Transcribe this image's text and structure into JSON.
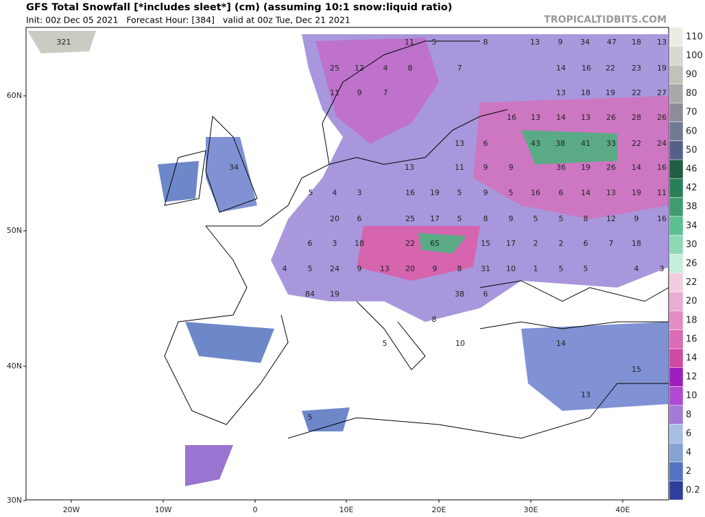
{
  "header": {
    "title": "GFS Total Snowfall [*includes sleet*] (cm) (assuming 10:1 snow:liquid ratio)",
    "subtitle": "Init: 00z Dec 05 2021   Forecast Hour: [384]   valid at 00z Tue, Dec 21 2021",
    "watermark": "TROPICALTIDBITS.COM"
  },
  "map": {
    "lat_labels": [
      "60N",
      "50N",
      "40N",
      "30N"
    ],
    "lon_labels": [
      "20W",
      "10W",
      "0",
      "10E",
      "20E",
      "30E",
      "40E"
    ],
    "labels": [
      321,
      11,
      5,
      8,
      13,
      9,
      34,
      47,
      18,
      13,
      25,
      12,
      4,
      8,
      7,
      14,
      16,
      22,
      23,
      19,
      11,
      9,
      7,
      13,
      18,
      19,
      22,
      27,
      16,
      13,
      14,
      13,
      26,
      28,
      26,
      13,
      6,
      43,
      38,
      41,
      33,
      22,
      24,
      34,
      13,
      11,
      9,
      9,
      36,
      19,
      26,
      14,
      16,
      5,
      4,
      3,
      16,
      19,
      5,
      9,
      5,
      16,
      6,
      14,
      13,
      19,
      11,
      20,
      6,
      25,
      17,
      5,
      8,
      9,
      5,
      5,
      8,
      12,
      9,
      16,
      6,
      3,
      18,
      22,
      65,
      15,
      17,
      2,
      2,
      6,
      7,
      18,
      4,
      5,
      24,
      9,
      13,
      20,
      9,
      8,
      31,
      10,
      1,
      5,
      5,
      4,
      3,
      84,
      19,
      38,
      6,
      8,
      10,
      5,
      14,
      5,
      15,
      13
    ]
  },
  "colorbar": {
    "labels": [
      "110",
      "100",
      "90",
      "80",
      "70",
      "60",
      "50",
      "46",
      "42",
      "38",
      "34",
      "30",
      "26",
      "22",
      "20",
      "18",
      "16",
      "14",
      "12",
      "10",
      "8",
      "6",
      "4",
      "2",
      "0.2"
    ],
    "colors": [
      "#ececE4",
      "#d9d9d1",
      "#c2c2ba",
      "#a9a9a9",
      "#8d8d99",
      "#727a92",
      "#55608a",
      "#1f5e45",
      "#2a7f58",
      "#3e9c70",
      "#5cbf90",
      "#8fd8b6",
      "#c6eedc",
      "#f2cde2",
      "#e9acd2",
      "#e28cc3",
      "#d96cb3",
      "#cf4aa2",
      "#9c1fbd",
      "#b04ad0",
      "#a27ad8",
      "#a8bde2",
      "#84a3d2",
      "#5473c0",
      "#2f3e9c"
    ]
  }
}
